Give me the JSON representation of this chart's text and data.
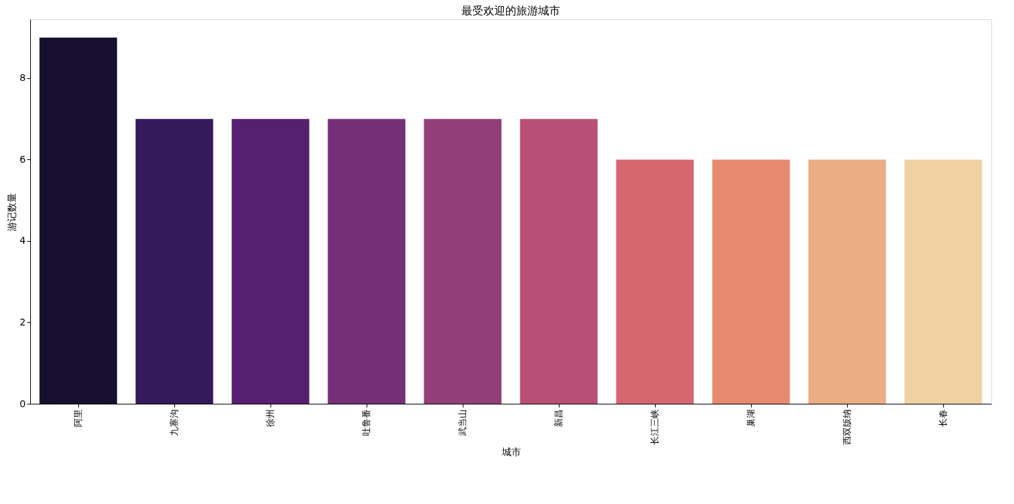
{
  "chart_data": {
    "type": "bar",
    "title": "最受欢迎的旅游城市",
    "xlabel": "城市",
    "ylabel": "游记数量",
    "categories": [
      "阿里",
      "九寨沟",
      "徐州",
      "吐鲁番",
      "武当山",
      "新昌",
      "长江三峡",
      "巢湖",
      "西双版纳",
      "长春"
    ],
    "values": [
      9,
      7,
      7,
      7,
      7,
      7,
      6,
      6,
      6,
      6
    ],
    "colors": [
      "#160f2f",
      "#341a5b",
      "#55206f",
      "#742f77",
      "#923f79",
      "#b84f74",
      "#d66670",
      "#e58a6f",
      "#ebad83",
      "#f0d1a1"
    ],
    "ylim": [
      0,
      9.45
    ],
    "yticks": [
      0,
      2,
      4,
      6,
      8
    ],
    "grid": false
  }
}
